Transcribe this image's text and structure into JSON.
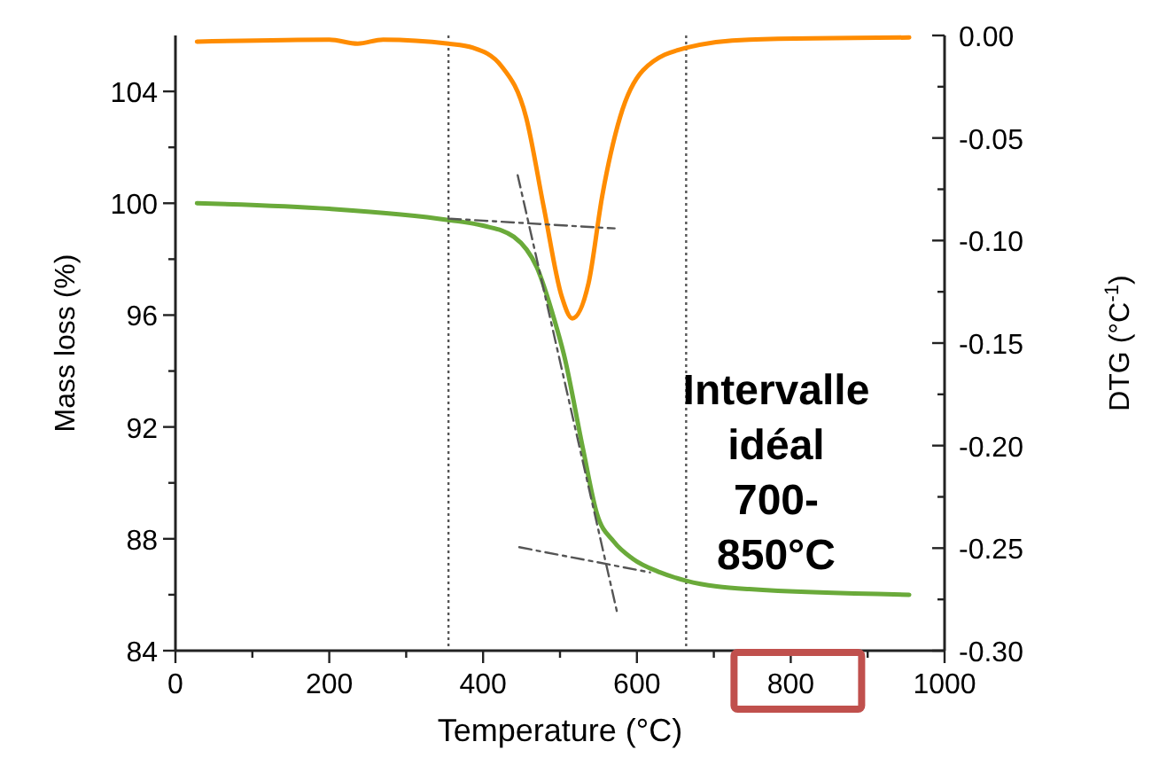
{
  "chart_data": {
    "type": "line",
    "xlabel": "Temperature (°C)",
    "ylabel": "Mass loss (%)",
    "y2label": "DTG (°C$^{-1}$)",
    "xlim": [
      0,
      1000
    ],
    "xticks": [
      0,
      {
        "value": 100,
        "label": null
      },
      200,
      {
        "value": 300,
        "label": null
      },
      400,
      {
        "value": 500,
        "label": null
      },
      600,
      {
        "value": 700,
        "label": null
      },
      800,
      {
        "value": 900,
        "label": null
      },
      1000
    ],
    "ylim": [
      84,
      106
    ],
    "yticks": [
      84,
      {
        "value": 86,
        "label": null
      },
      88,
      {
        "value": 90,
        "label": null
      },
      92,
      {
        "value": 94,
        "label": null
      },
      96,
      {
        "value": 98,
        "label": null
      },
      100,
      {
        "value": 102,
        "label": null
      },
      104
    ],
    "y2lim": [
      -0.3,
      0
    ],
    "y2ticks": [
      {
        "value": 0,
        "label": "0.00"
      },
      {
        "value": -0.025,
        "label": null
      },
      {
        "value": -0.05,
        "label": "-0.05"
      },
      {
        "value": -0.075,
        "label": null
      },
      {
        "value": -0.1,
        "label": "-0.10"
      },
      {
        "value": -0.125,
        "label": null
      },
      {
        "value": -0.15,
        "label": "-0.15"
      },
      {
        "value": -0.175,
        "label": null
      },
      {
        "value": -0.2,
        "label": "-0.20"
      },
      {
        "value": -0.225,
        "label": null
      },
      {
        "value": -0.25,
        "label": "-0.25"
      },
      {
        "value": -0.275,
        "label": null
      },
      {
        "value": -0.3,
        "label": "-0.30"
      }
    ],
    "grid": false,
    "series": [
      {
        "color": "#6aaa3a",
        "line_style": "solid",
        "x": [
          28,
          200,
          355,
          400,
          440,
          470,
          493,
          505,
          530,
          548,
          570,
          594,
          630,
          664,
          746,
          954
        ],
        "values": [
          100,
          99.8,
          99.4,
          99.2,
          98.8,
          97.7,
          95.8,
          94.6,
          91.2,
          88.9,
          87.9,
          87.3,
          86.8,
          86.5,
          86.2,
          86.0
        ]
      },
      {
        "color": "#ff8c00",
        "axis": "y2",
        "line_style": "solid",
        "x": [
          28,
          200,
          237,
          270,
          355,
          387,
          424,
          456,
          479,
          502,
          516,
          537,
          555,
          578,
          608,
          664,
          746,
          954
        ],
        "values": [
          -0.003,
          -0.002,
          -0.004,
          -0.002,
          -0.004,
          -0.006,
          -0.015,
          -0.04,
          -0.084,
          -0.127,
          -0.138,
          -0.121,
          -0.078,
          -0.04,
          -0.017,
          -0.006,
          -0.002,
          -0.001
        ]
      },
      {
        "color": "#555555",
        "line_style": "dashed",
        "x": [
          355,
          571
        ],
        "values": [
          99.45,
          99.1
        ]
      },
      {
        "color": "#555555",
        "line_style": "dashed",
        "x": [
          445,
          574
        ],
        "values": [
          101.0,
          85.4
        ]
      },
      {
        "color": "#555555",
        "line_style": "dashed",
        "x": [
          447,
          617
        ],
        "values": [
          87.7,
          86.8
        ]
      }
    ],
    "ref_lines": [
      {
        "axis": "x",
        "value": 355,
        "color": "#555555",
        "line_style": "dotted"
      },
      {
        "axis": "x",
        "value": 664,
        "color": "#555555",
        "line_style": "dotted"
      }
    ],
    "annotations": [
      "Intervalle\nidéal\n700-\n850°C"
    ]
  }
}
